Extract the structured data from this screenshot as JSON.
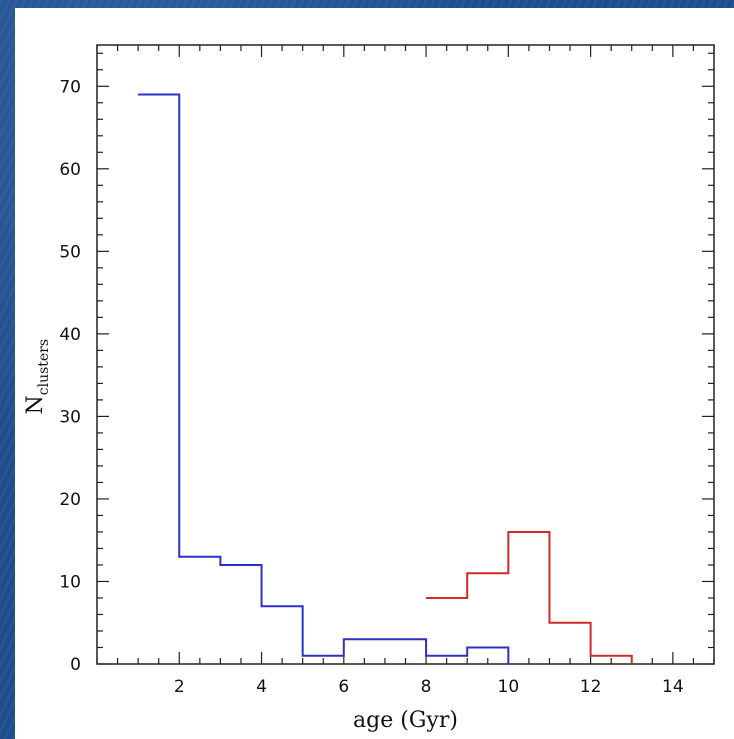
{
  "chart_data": {
    "type": "histogram",
    "xlabel": "age (Gyr)",
    "ylabel": "N",
    "ylabel_subscript": "clusters",
    "xlim": [
      0,
      15
    ],
    "ylim": [
      0,
      75
    ],
    "xticks": [
      2,
      4,
      6,
      8,
      10,
      12,
      14
    ],
    "yticks": [
      0,
      10,
      20,
      30,
      40,
      50,
      60,
      70
    ],
    "grid": false,
    "series": [
      {
        "color": "#2f2fc8",
        "bin_edges": [
          1,
          2,
          3,
          4,
          5,
          6,
          7,
          8,
          9,
          10
        ],
        "counts": [
          69,
          13,
          12,
          7,
          1,
          3,
          3,
          1,
          2
        ]
      },
      {
        "color": "#d02a2a",
        "bin_edges": [
          8,
          9,
          10,
          11,
          12,
          13
        ],
        "counts": [
          8,
          11,
          16,
          5,
          1
        ]
      }
    ]
  }
}
